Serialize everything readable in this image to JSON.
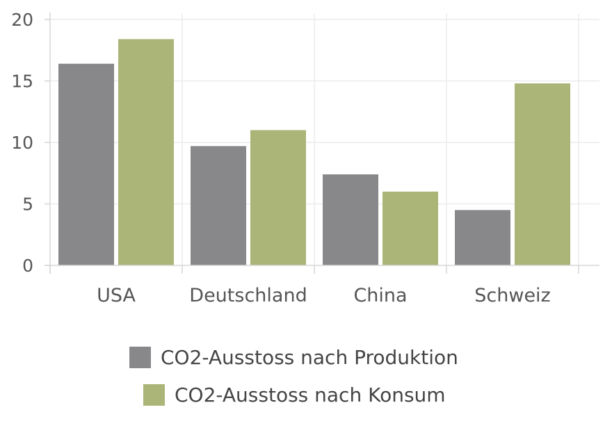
{
  "chart_data": {
    "type": "bar",
    "categories": [
      "USA",
      "Deutschland",
      "China",
      "Schweiz"
    ],
    "series": [
      {
        "name": "CO2-Ausstoss nach Produktion",
        "color": "#88888a",
        "values": [
          16.4,
          9.7,
          7.4,
          4.5
        ]
      },
      {
        "name": "CO2-Ausstoss nach Konsum",
        "color": "#aab577",
        "values": [
          18.4,
          11.0,
          6.0,
          14.8
        ]
      }
    ],
    "yticks": [
      0,
      5,
      10,
      15,
      20
    ],
    "ylim": [
      0,
      20
    ],
    "title": "",
    "xlabel": "",
    "ylabel": "",
    "grid": true,
    "legend_position": "bottom"
  }
}
